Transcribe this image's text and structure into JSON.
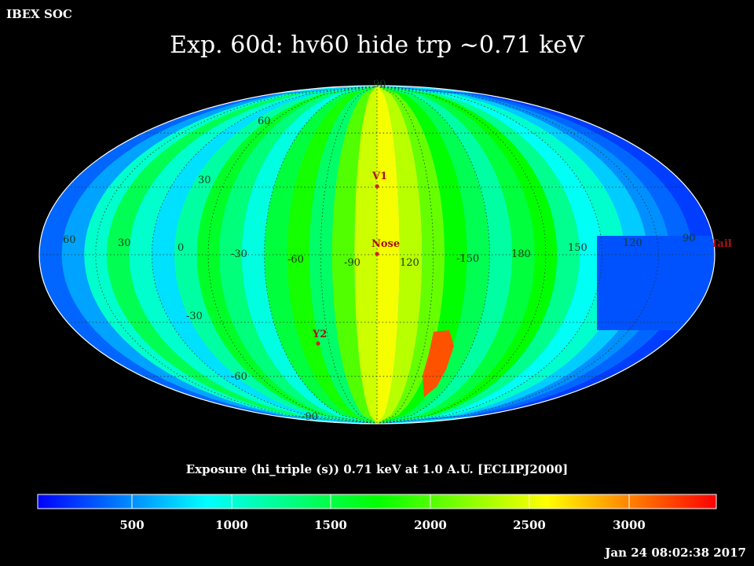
{
  "header": {
    "org": "IBEX SOC",
    "title": "Exp.   60d: hv60 hide trp ~0.71 keV"
  },
  "map": {
    "projection": "mollweide",
    "frame": "ECLIPJ2000",
    "lat_labels": [
      "90",
      "60",
      "30",
      "-30",
      "-60",
      "-90"
    ],
    "lon_labels": [
      "60",
      "30",
      "0",
      "-30",
      "-60",
      "-90",
      "120",
      "-150",
      "180",
      "150",
      "120",
      "90"
    ],
    "markers": [
      {
        "label": "V1",
        "color": "#cc2222"
      },
      {
        "label": "Nose",
        "color": "#cc2222"
      },
      {
        "label": "Y2",
        "color": "#cc2222"
      },
      {
        "label": "Tail",
        "color": "#cc2222"
      }
    ]
  },
  "colorbar": {
    "title": "Exposure (hi_triple (s))  0.71 keV at 1.0 A.U. [ECLIPJ2000]",
    "ticks": [
      "500",
      "1000",
      "1500",
      "2000",
      "2500",
      "3000"
    ],
    "colors": [
      "#0000ff",
      "#00ffff",
      "#00ff00",
      "#ffff00",
      "#ff0000"
    ]
  },
  "footer": {
    "timestamp": "Jan 24 08:02:38 2017"
  }
}
